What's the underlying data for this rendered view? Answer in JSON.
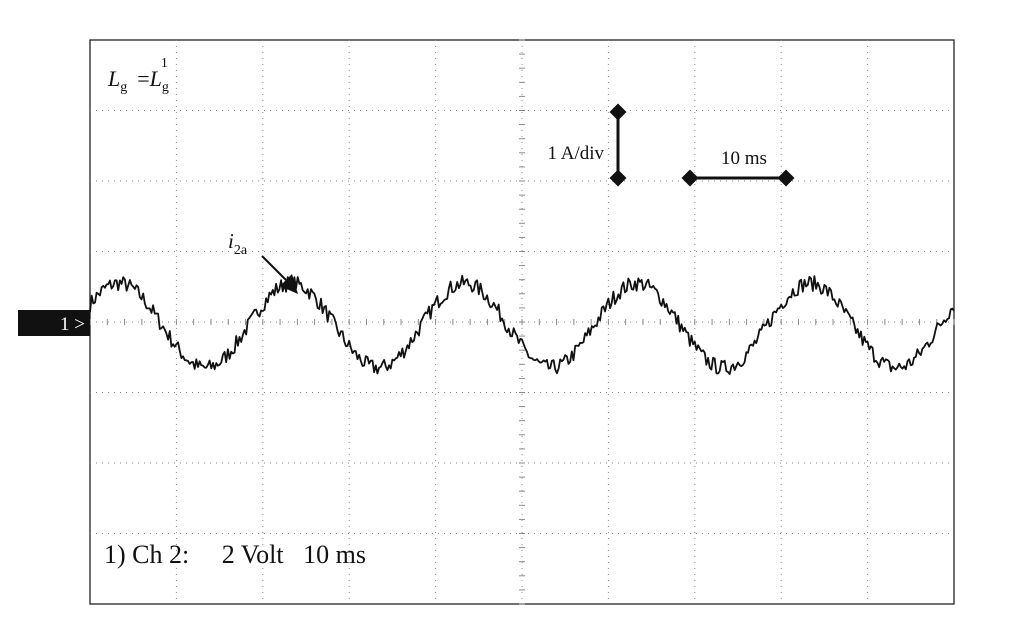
{
  "header": {
    "inductance_symbol": "L",
    "inductance_sub": "g",
    "equals": "=",
    "inductance_value_symbol": "L",
    "inductance_value_sub": "g",
    "inductance_value_sup": "1"
  },
  "scale": {
    "current_label": "1 A/div",
    "time_label": "10 ms"
  },
  "trace_label": {
    "symbol": "i",
    "sub": "2a"
  },
  "channel_marker": "1 >",
  "footer": {
    "text": "1) Ch 2:     2 Volt   10 ms"
  },
  "colors": {
    "trace": "#111111",
    "grid": "#8a8a8a",
    "marker_bg": "#111111",
    "marker_text": "#ffffff"
  },
  "chart_data": {
    "type": "line",
    "title": "",
    "xlabel": "",
    "ylabel": "",
    "grid": true,
    "x_divisions": 10,
    "y_divisions": 8,
    "x_unit": "ms",
    "y_unit": "A",
    "xlim": [
      0,
      100
    ],
    "ylim": [
      -4,
      4
    ],
    "series": [
      {
        "name": "i2a",
        "frequency_hz": 50,
        "amplitude_a": 0.6,
        "offset_a": -0.05,
        "phase_deg": 30,
        "noise": "high-frequency ripple"
      }
    ]
  }
}
